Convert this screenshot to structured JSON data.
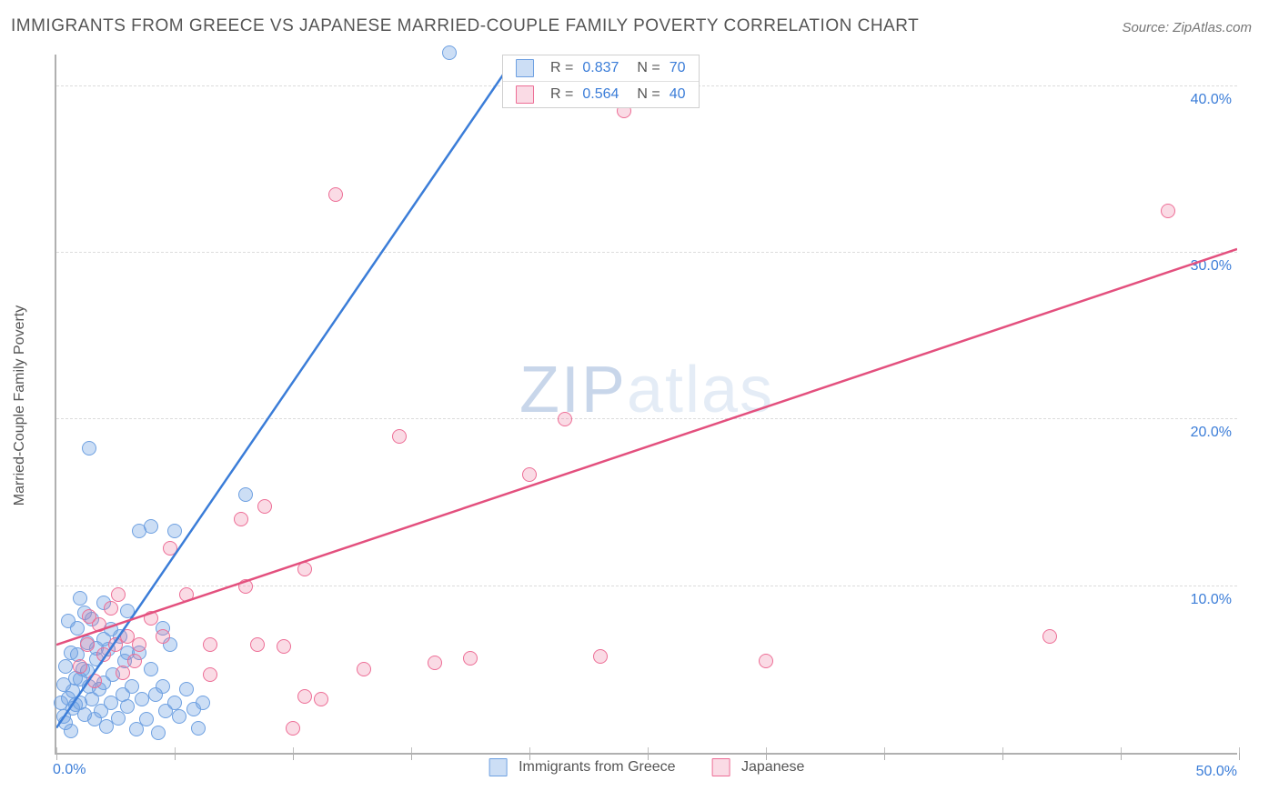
{
  "title": "IMMIGRANTS FROM GREECE VS JAPANESE MARRIED-COUPLE FAMILY POVERTY CORRELATION CHART",
  "source": "Source: ZipAtlas.com",
  "ylabel": "Married-Couple Family Poverty",
  "watermark_black": "ZIP",
  "watermark_light": "atlas",
  "chart": {
    "type": "scatter",
    "xlim": [
      0,
      50
    ],
    "ylim": [
      0,
      42
    ],
    "x_axis_labels": [
      {
        "v": 0,
        "t": "0.0%"
      },
      {
        "v": 50,
        "t": "50.0%"
      }
    ],
    "y_axis_labels": [
      {
        "v": 10,
        "t": "10.0%"
      },
      {
        "v": 20,
        "t": "20.0%"
      },
      {
        "v": 30,
        "t": "30.0%"
      },
      {
        "v": 40,
        "t": "40.0%"
      }
    ],
    "x_ticks_major": [
      0,
      5,
      10,
      15,
      20,
      25,
      30,
      35,
      40,
      45,
      50
    ],
    "grid_color": "#dcdcdc",
    "axis_color": "#b0b0b0",
    "label_color_num": "#3b7dd8",
    "marker_radius": 8,
    "line_width": 2.5
  },
  "series": [
    {
      "key": "greece",
      "label": "Immigrants from Greece",
      "color_fill": "rgba(110,160,225,0.35)",
      "color_stroke": "#6ea0e1",
      "line_color": "#3b7dd8",
      "R": "0.837",
      "N": "70",
      "trend": {
        "x1": 0,
        "y1": 1.5,
        "x2": 19.5,
        "y2": 42
      },
      "points": [
        [
          0.3,
          4.1
        ],
        [
          0.4,
          5.2
        ],
        [
          0.5,
          3.3
        ],
        [
          0.6,
          6.0
        ],
        [
          0.7,
          2.7
        ],
        [
          0.8,
          4.5
        ],
        [
          0.9,
          7.5
        ],
        [
          1.0,
          3.0
        ],
        [
          1.1,
          5.0
        ],
        [
          1.2,
          2.3
        ],
        [
          1.3,
          6.6
        ],
        [
          1.4,
          4.0
        ],
        [
          1.5,
          8.0
        ],
        [
          1.5,
          3.2
        ],
        [
          1.6,
          2.0
        ],
        [
          1.7,
          5.6
        ],
        [
          1.8,
          3.8
        ],
        [
          1.9,
          2.5
        ],
        [
          2.0,
          9.0
        ],
        [
          2.0,
          4.2
        ],
        [
          2.1,
          1.6
        ],
        [
          2.2,
          6.2
        ],
        [
          2.3,
          3.0
        ],
        [
          2.4,
          4.7
        ],
        [
          2.6,
          2.1
        ],
        [
          2.7,
          7.0
        ],
        [
          2.8,
          3.5
        ],
        [
          2.9,
          5.5
        ],
        [
          3.0,
          8.5
        ],
        [
          3.0,
          2.8
        ],
        [
          3.2,
          4.0
        ],
        [
          3.4,
          1.4
        ],
        [
          3.5,
          6.0
        ],
        [
          3.6,
          3.2
        ],
        [
          3.8,
          2.0
        ],
        [
          4.0,
          5.0
        ],
        [
          4.2,
          3.5
        ],
        [
          4.3,
          1.2
        ],
        [
          4.5,
          4.0
        ],
        [
          4.6,
          2.5
        ],
        [
          4.8,
          6.5
        ],
        [
          5.0,
          3.0
        ],
        [
          5.2,
          2.2
        ],
        [
          5.5,
          3.8
        ],
        [
          5.8,
          2.6
        ],
        [
          6.0,
          1.5
        ],
        [
          6.2,
          3.0
        ],
        [
          0.5,
          7.9
        ],
        [
          1.0,
          9.3
        ],
        [
          1.2,
          8.4
        ],
        [
          1.4,
          18.3
        ],
        [
          3.5,
          13.3
        ],
        [
          4.0,
          13.6
        ],
        [
          5.0,
          13.3
        ],
        [
          2.0,
          6.8
        ],
        [
          2.3,
          7.4
        ],
        [
          3.0,
          6.0
        ],
        [
          4.5,
          7.5
        ],
        [
          0.2,
          3.0
        ],
        [
          0.3,
          2.2
        ],
        [
          0.4,
          1.8
        ],
        [
          0.6,
          1.3
        ],
        [
          0.7,
          3.7
        ],
        [
          0.8,
          2.9
        ],
        [
          1.0,
          4.4
        ],
        [
          8.0,
          15.5
        ],
        [
          0.9,
          5.9
        ],
        [
          1.3,
          4.9
        ],
        [
          1.7,
          6.3
        ],
        [
          16.6,
          42.0
        ]
      ]
    },
    {
      "key": "japanese",
      "label": "Japanese",
      "color_fill": "rgba(237,110,150,0.25)",
      "color_stroke": "#ed6e96",
      "line_color": "#e3507e",
      "R": "0.564",
      "N": "40",
      "trend": {
        "x1": 0,
        "y1": 6.5,
        "x2": 50,
        "y2": 30.3
      },
      "points": [
        [
          1.0,
          5.2
        ],
        [
          1.3,
          6.5
        ],
        [
          1.6,
          4.3
        ],
        [
          1.8,
          7.7
        ],
        [
          2.0,
          5.9
        ],
        [
          2.3,
          8.7
        ],
        [
          2.5,
          6.5
        ],
        [
          2.8,
          4.8
        ],
        [
          3.0,
          7.0
        ],
        [
          3.3,
          5.5
        ],
        [
          4.0,
          8.1
        ],
        [
          3.5,
          6.5
        ],
        [
          4.5,
          7.0
        ],
        [
          5.5,
          9.5
        ],
        [
          6.5,
          6.5
        ],
        [
          8.0,
          10.0
        ],
        [
          8.5,
          6.5
        ],
        [
          9.6,
          6.4
        ],
        [
          4.8,
          12.3
        ],
        [
          7.8,
          14.0
        ],
        [
          8.8,
          14.8
        ],
        [
          10.5,
          11.0
        ],
        [
          10.0,
          1.5
        ],
        [
          11.8,
          33.5
        ],
        [
          14.5,
          19.0
        ],
        [
          16.0,
          5.4
        ],
        [
          17.5,
          5.7
        ],
        [
          20.0,
          16.7
        ],
        [
          21.5,
          20.0
        ],
        [
          23.0,
          5.8
        ],
        [
          10.5,
          3.4
        ],
        [
          11.2,
          3.2
        ],
        [
          24.0,
          38.5
        ],
        [
          30.0,
          5.5
        ],
        [
          42.0,
          7.0
        ],
        [
          47.0,
          32.5
        ],
        [
          1.4,
          8.2
        ],
        [
          2.6,
          9.5
        ],
        [
          6.5,
          4.7
        ],
        [
          13.0,
          5.0
        ]
      ]
    }
  ]
}
